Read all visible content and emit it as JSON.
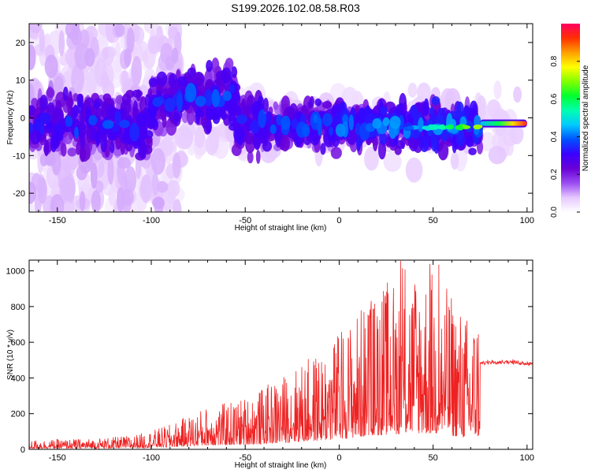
{
  "figure": {
    "title": "S199.2026.102.08.58.R03"
  },
  "chart_data": [
    {
      "type": "heatmap",
      "xlabel": "Height of straight line (km)",
      "ylabel": "Frequency (Hz)",
      "xlim": [
        -165,
        103
      ],
      "ylim": [
        -25,
        25
      ],
      "x_ticks": [
        -150,
        -100,
        -50,
        0,
        50,
        100
      ],
      "x_tick_labels": [
        "-150",
        "-100",
        "-50",
        "0",
        "50",
        "100"
      ],
      "y_ticks": [
        -20,
        -10,
        0,
        10,
        20
      ],
      "y_tick_labels": [
        "-20",
        "-10",
        "0",
        "10",
        "20"
      ],
      "colorbar": {
        "label": "Normalized spectral amplitude",
        "range": [
          0,
          1
        ],
        "ticks": [
          0.0,
          0.2,
          0.4,
          0.6,
          0.8
        ],
        "tick_labels": [
          "0.0",
          "0.2",
          "0.4",
          "0.6",
          "0.8"
        ],
        "colormap": [
          "#ffffff",
          "#e6c8ff",
          "#9a4df2",
          "#6a00d6",
          "#3a00ff",
          "#0050ff",
          "#00c8ff",
          "#00ffb0",
          "#00ff30",
          "#80ff00",
          "#ffff00",
          "#ffa000",
          "#ff3000",
          "#ff0060"
        ]
      },
      "description_points": [
        {
          "x": 100,
          "y": -1.5,
          "amp": 0.9
        },
        {
          "x": 85,
          "y": -1.5,
          "amp": 0.75
        },
        {
          "x": 70,
          "y": -2,
          "amp": 0.55
        },
        {
          "x": 55,
          "y": -2.5,
          "amp": 0.4
        },
        {
          "x": 40,
          "y": -3,
          "amp": 0.3
        },
        {
          "x": 20,
          "y": -2,
          "amp": 0.25
        },
        {
          "x": 0,
          "y": -2,
          "amp": 0.2
        },
        {
          "x": -60,
          "y": 7,
          "amp": 0.2
        }
      ]
    },
    {
      "type": "line",
      "xlabel": "Height of straight line (km)",
      "ylabel": "SNR (10 * v/v)",
      "xlim": [
        -165,
        103
      ],
      "ylim": [
        0,
        1060
      ],
      "x_ticks": [
        -150,
        -100,
        -50,
        0,
        50,
        100
      ],
      "x_tick_labels": [
        "-150",
        "-100",
        "-50",
        "0",
        "50",
        "100"
      ],
      "y_ticks": [
        0,
        200,
        400,
        600,
        800,
        1000
      ],
      "y_tick_labels": [
        "0",
        "200",
        "400",
        "600",
        "800",
        "1000"
      ],
      "series": [
        {
          "name": "SNR",
          "color": "#ee2222",
          "envelope_x": [
            -165,
            -130,
            -110,
            -100,
            -90,
            -80,
            -70,
            -60,
            -50,
            -40,
            -30,
            -20,
            -10,
            0,
            10,
            20,
            30,
            40,
            50,
            60,
            70,
            75,
            80,
            90,
            103
          ],
          "envelope_y": [
            30,
            35,
            45,
            60,
            80,
            110,
            140,
            150,
            170,
            200,
            240,
            280,
            320,
            380,
            450,
            520,
            560,
            600,
            580,
            500,
            420,
            480,
            490,
            490,
            480
          ]
        }
      ]
    }
  ]
}
